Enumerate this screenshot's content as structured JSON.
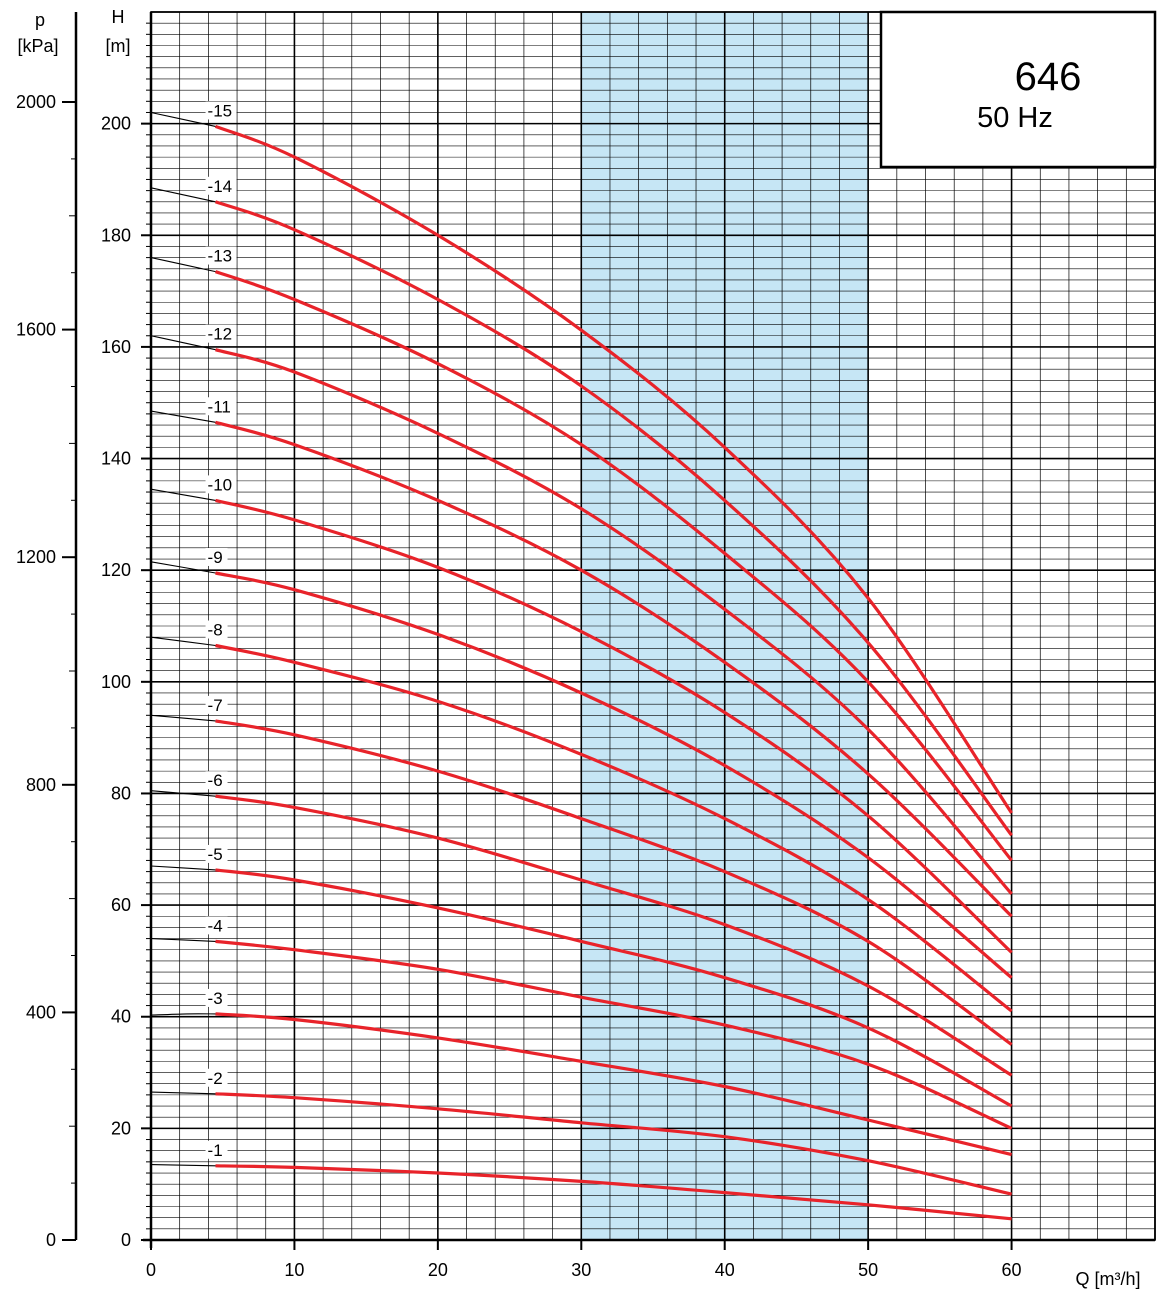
{
  "chart_data": {
    "type": "line",
    "title": "646",
    "subtitle": "50 Hz",
    "xlabel": "Q [m³/h]",
    "ylabel": "H [m]",
    "ylabel_line1": "H",
    "ylabel_line2": "[m]",
    "y2label_line1": "p",
    "y2label_line2": "[kPa]",
    "xlim": [
      0,
      70
    ],
    "ylim": [
      0,
      220
    ],
    "y2lim": [
      0,
      2000
    ],
    "x_ticks": [
      0,
      10,
      20,
      30,
      40,
      50,
      60
    ],
    "y_ticks": [
      0,
      20,
      40,
      60,
      80,
      100,
      120,
      140,
      160,
      180,
      200
    ],
    "y2_ticks": [
      0,
      400,
      800,
      1200,
      1600,
      2000
    ],
    "grid": true,
    "highlight_band": {
      "x_range": [
        30,
        50
      ],
      "color": "#c6e6f5"
    },
    "curve_color": "#e8232a",
    "series": [
      {
        "name": "-1",
        "x": [
          0,
          4.5,
          10,
          20,
          30,
          40,
          50,
          60
        ],
        "y": [
          13.5,
          13.3,
          13.0,
          12.0,
          10.5,
          8.5,
          6.3,
          3.8
        ]
      },
      {
        "name": "-2",
        "x": [
          0,
          4.5,
          10,
          20,
          30,
          40,
          50,
          60
        ],
        "y": [
          26.5,
          26.2,
          25.5,
          23.5,
          21.0,
          18.5,
          14.2,
          8.2
        ]
      },
      {
        "name": "-3",
        "x": [
          0,
          2.5,
          4.5,
          10,
          20,
          30,
          40,
          50,
          60
        ],
        "y": [
          40.3,
          40.5,
          40.5,
          39.5,
          36.2,
          32.0,
          27.5,
          21.5,
          15.3
        ]
      },
      {
        "name": "-4",
        "x": [
          0,
          4.5,
          10,
          20,
          30,
          40,
          50,
          60
        ],
        "y": [
          54.0,
          53.5,
          52.0,
          48.5,
          43.5,
          38.5,
          31.5,
          20.0
        ]
      },
      {
        "name": "-5",
        "x": [
          0,
          4.5,
          10,
          20,
          30,
          40,
          50,
          60
        ],
        "y": [
          67.0,
          66.3,
          64.5,
          59.5,
          53.5,
          47.0,
          38.0,
          24.0
        ]
      },
      {
        "name": "-6",
        "x": [
          0,
          4.5,
          10,
          20,
          30,
          40,
          50,
          60
        ],
        "y": [
          80.5,
          79.5,
          77.5,
          72.0,
          64.5,
          56.5,
          45.5,
          29.5
        ]
      },
      {
        "name": "-7",
        "x": [
          0,
          4.5,
          10,
          20,
          30,
          40,
          50,
          60
        ],
        "y": [
          94.0,
          93.0,
          90.5,
          84.0,
          75.5,
          66.0,
          53.5,
          35.0
        ]
      },
      {
        "name": "-8",
        "x": [
          0,
          4.5,
          10,
          20,
          30,
          40,
          50,
          60
        ],
        "y": [
          108.0,
          106.5,
          103.5,
          96.5,
          87.0,
          75.5,
          61.0,
          41.0
        ]
      },
      {
        "name": "-9",
        "x": [
          0,
          4.5,
          10,
          20,
          30,
          40,
          50,
          60
        ],
        "y": [
          121.5,
          119.5,
          116.5,
          108.5,
          98.0,
          85.0,
          68.5,
          47.0
        ]
      },
      {
        "name": "-10",
        "x": [
          0,
          4.5,
          10,
          20,
          30,
          40,
          50,
          60
        ],
        "y": [
          134.5,
          132.5,
          129.0,
          120.5,
          109.0,
          94.5,
          76.0,
          51.5
        ]
      },
      {
        "name": "-11",
        "x": [
          0,
          4.5,
          10,
          20,
          30,
          40,
          50,
          60
        ],
        "y": [
          148.5,
          146.5,
          142.5,
          132.5,
          120.0,
          103.5,
          83.5,
          58.0
        ]
      },
      {
        "name": "-12",
        "x": [
          0,
          4.5,
          10,
          20,
          30,
          40,
          50,
          60
        ],
        "y": [
          162.0,
          159.5,
          155.5,
          144.5,
          131.0,
          113.0,
          91.5,
          62.0
        ]
      },
      {
        "name": "-13",
        "x": [
          0,
          4.5,
          10,
          20,
          30,
          40,
          50,
          60
        ],
        "y": [
          176.0,
          173.5,
          168.5,
          157.0,
          142.5,
          123.0,
          100.0,
          68.0
        ]
      },
      {
        "name": "-14",
        "x": [
          0,
          4.5,
          10,
          20,
          30,
          40,
          50,
          60
        ],
        "y": [
          188.5,
          186.0,
          181.0,
          168.5,
          153.0,
          132.5,
          107.0,
          72.5
        ]
      },
      {
        "name": "-15",
        "x": [
          0,
          4.5,
          10,
          20,
          30,
          40,
          50,
          60
        ],
        "y": [
          202.0,
          199.5,
          194.0,
          180.0,
          163.0,
          142.0,
          115.0,
          76.5
        ]
      }
    ]
  }
}
